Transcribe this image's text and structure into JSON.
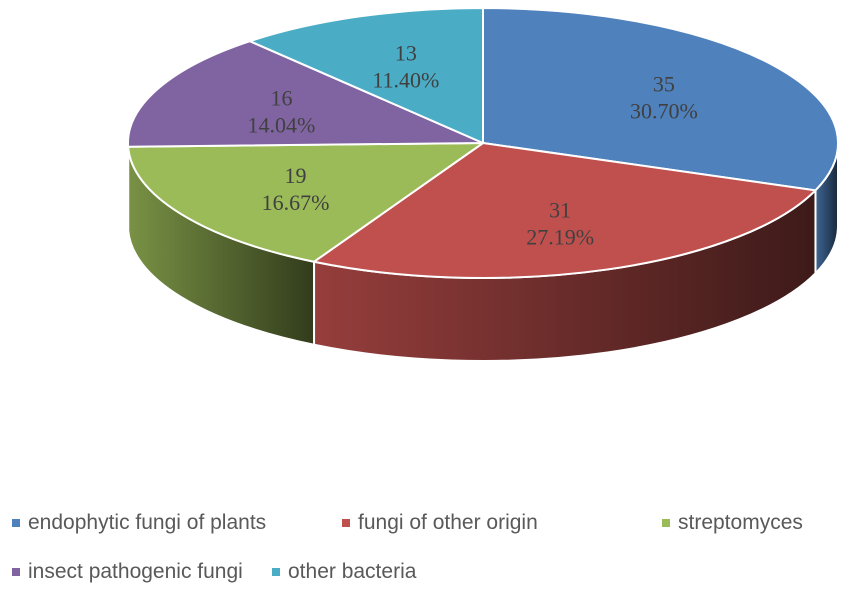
{
  "chart_data": {
    "type": "pie",
    "title": "",
    "style": "3d",
    "legend_position": "bottom",
    "slices": [
      {
        "label": "endophytic fungi of plants",
        "value": 35,
        "percent": "30.70%",
        "color": "#4F81BD"
      },
      {
        "label": "fungi of other origin",
        "value": 31,
        "percent": "27.19%",
        "color": "#C0504D"
      },
      {
        "label": "streptomyces",
        "value": 19,
        "percent": "16.67%",
        "color": "#9BBB59"
      },
      {
        "label": "insect pathogenic fungi",
        "value": 16,
        "percent": "14.04%",
        "color": "#8064A2"
      },
      {
        "label": "other bacteria",
        "value": 13,
        "percent": "11.40%",
        "color": "#4BACC6"
      }
    ]
  }
}
